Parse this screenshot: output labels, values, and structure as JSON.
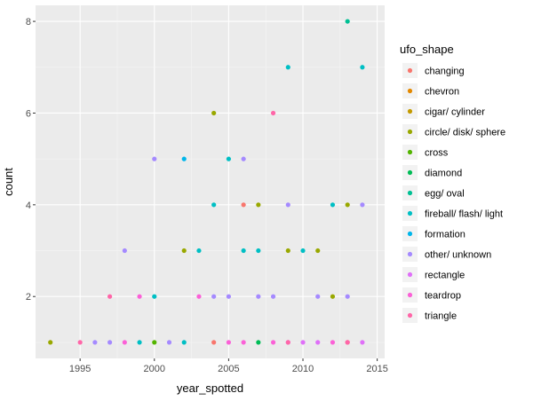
{
  "chart_data": {
    "type": "scatter",
    "xlabel": "year_spotted",
    "ylabel": "count",
    "xlim": [
      1992,
      2015.5
    ],
    "ylim": [
      0.65,
      8.35
    ],
    "xticks": [
      1995,
      2000,
      2005,
      2010,
      2015
    ],
    "yticks": [
      2,
      4,
      6,
      8
    ],
    "grid": true,
    "legend_title": "ufo_shape",
    "legend_position": "right",
    "series": [
      {
        "name": "changing",
        "color": "#F8766D",
        "points": [
          [
            2004,
            1
          ],
          [
            2006,
            4
          ],
          [
            2013,
            1
          ]
        ]
      },
      {
        "name": "chevron",
        "color": "#E38900",
        "points": []
      },
      {
        "name": "cigar/ cylinder",
        "color": "#C49A00",
        "points": []
      },
      {
        "name": "circle/ disk/ sphere",
        "color": "#99A800",
        "points": [
          [
            1993,
            1
          ],
          [
            2002,
            3
          ],
          [
            2004,
            6
          ],
          [
            2007,
            4
          ],
          [
            2009,
            3
          ],
          [
            2011,
            3
          ],
          [
            2012,
            2
          ],
          [
            2013,
            4
          ]
        ]
      },
      {
        "name": "cross",
        "color": "#53B400",
        "points": [
          [
            2000,
            1
          ]
        ]
      },
      {
        "name": "diamond",
        "color": "#00BC56",
        "points": [
          [
            2007,
            1
          ]
        ]
      },
      {
        "name": "egg/ oval",
        "color": "#00C094",
        "points": [
          [
            2013,
            8
          ]
        ]
      },
      {
        "name": "fireball/ flash/ light",
        "color": "#00BFC4",
        "points": [
          [
            1999,
            1
          ],
          [
            2000,
            2
          ],
          [
            2002,
            1
          ],
          [
            2003,
            3
          ],
          [
            2004,
            4
          ],
          [
            2005,
            5
          ],
          [
            2006,
            3
          ],
          [
            2007,
            3
          ],
          [
            2009,
            7
          ],
          [
            2010,
            3
          ],
          [
            2012,
            4
          ],
          [
            2014,
            7
          ]
        ]
      },
      {
        "name": "formation",
        "color": "#00B6EB",
        "points": [
          [
            2002,
            5
          ]
        ]
      },
      {
        "name": "other/ unknown",
        "color": "#A58AFF",
        "points": [
          [
            1996,
            1
          ],
          [
            1997,
            1
          ],
          [
            1998,
            3
          ],
          [
            2000,
            5
          ],
          [
            2001,
            1
          ],
          [
            2004,
            2
          ],
          [
            2005,
            2
          ],
          [
            2006,
            5
          ],
          [
            2007,
            2
          ],
          [
            2008,
            2
          ],
          [
            2009,
            4
          ],
          [
            2011,
            2
          ],
          [
            2013,
            2
          ],
          [
            2014,
            4
          ]
        ]
      },
      {
        "name": "rectangle",
        "color": "#DF70F8",
        "points": [
          [
            2009,
            1
          ],
          [
            2010,
            1
          ],
          [
            2011,
            1
          ],
          [
            2014,
            1
          ]
        ]
      },
      {
        "name": "teardrop",
        "color": "#FB61D7",
        "points": [
          [
            1998,
            1
          ],
          [
            1999,
            2
          ],
          [
            2003,
            2
          ],
          [
            2005,
            1
          ],
          [
            2006,
            1
          ],
          [
            2008,
            1
          ],
          [
            2012,
            1
          ]
        ]
      },
      {
        "name": "triangle",
        "color": "#FF66A8",
        "points": [
          [
            1995,
            1
          ],
          [
            1997,
            2
          ],
          [
            2008,
            6
          ],
          [
            2009,
            1
          ],
          [
            2013,
            1
          ]
        ]
      }
    ]
  }
}
